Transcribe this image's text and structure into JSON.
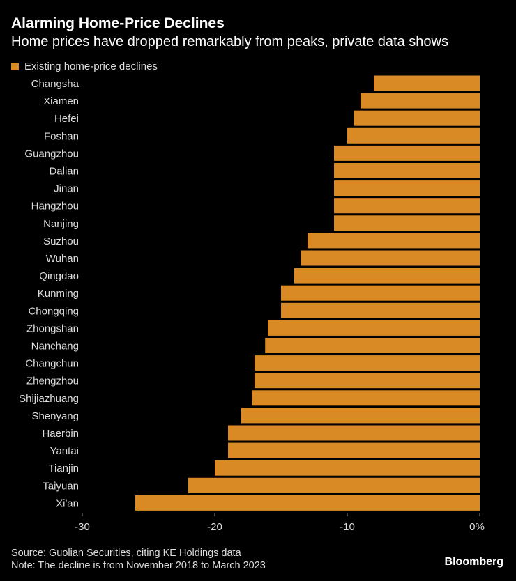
{
  "title": "Alarming Home-Price Declines",
  "subtitle": "Home prices have dropped remarkably from peaks, private data shows",
  "footer": {
    "source": "Source: Guolian Securities, citing KE Holdings data",
    "note": "Note: The decline is from November 2018 to March 2023",
    "brand": "Bloomberg"
  },
  "chart_data": {
    "type": "bar",
    "orientation": "horizontal",
    "categories": [
      "Changsha",
      "Xiamen",
      "Hefei",
      "Foshan",
      "Guangzhou",
      "Dalian",
      "Jinan",
      "Hangzhou",
      "Nanjing",
      "Suzhou",
      "Wuhan",
      "Qingdao",
      "Kunming",
      "Chongqing",
      "Zhongshan",
      "Nanchang",
      "Changchun",
      "Zhengzhou",
      "Shijiazhuang",
      "Shenyang",
      "Haerbin",
      "Yantai",
      "Tianjin",
      "Taiyuan",
      "Xi'an"
    ],
    "series": [
      {
        "name": "Existing home-price declines",
        "color": "#d98a24",
        "values": [
          -8,
          -9,
          -9.5,
          -10,
          -11,
          -11,
          -11,
          -11,
          -11,
          -13,
          -13.5,
          -14,
          -15,
          -15,
          -16,
          -16.2,
          -17,
          -17,
          -17.2,
          -18,
          -19,
          -19,
          -20,
          -22,
          -26
        ]
      }
    ],
    "xlim": [
      -30,
      0
    ],
    "xticks": [
      -30,
      -20,
      -10,
      0
    ],
    "xtick_labels": [
      "-30",
      "-20",
      "-10",
      "0%"
    ],
    "grid": false,
    "legend": "top-left"
  }
}
